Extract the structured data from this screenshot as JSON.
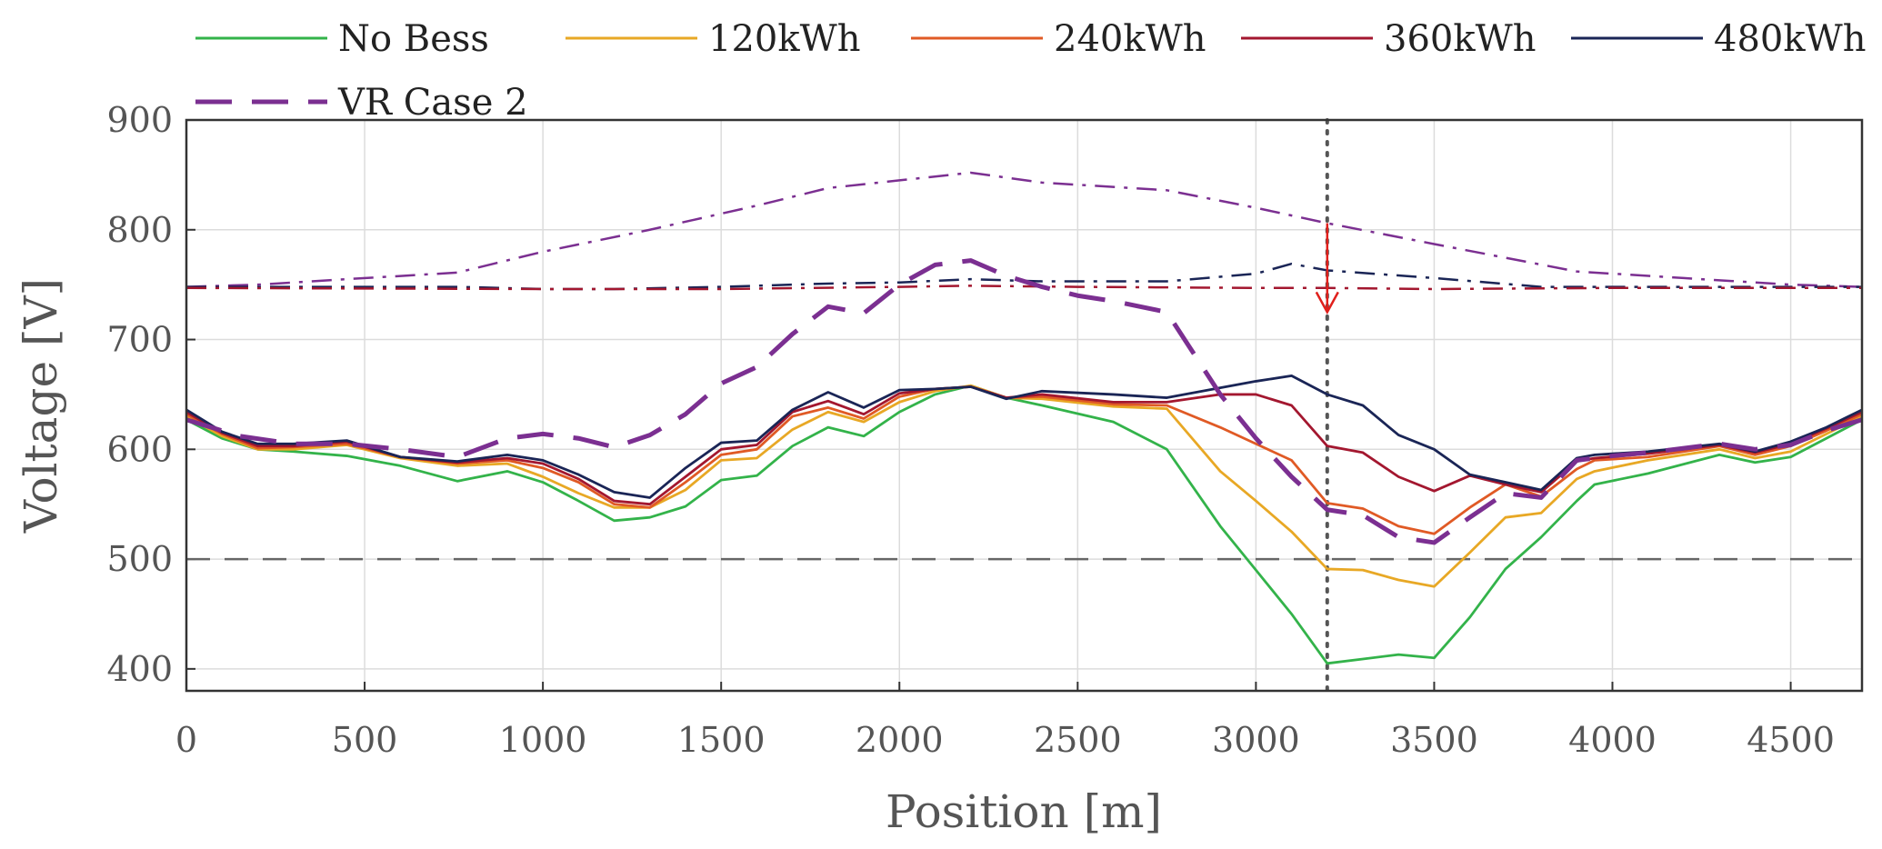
{
  "chart_data": {
    "type": "line",
    "title": "",
    "xlabel": "Position [m]",
    "ylabel": "Voltage [V]",
    "xlim": [
      0,
      4700
    ],
    "ylim": [
      380,
      900
    ],
    "xticks": [
      0,
      500,
      1000,
      1500,
      2000,
      2500,
      3000,
      3500,
      4000,
      4500
    ],
    "yticks": [
      400,
      500,
      600,
      700,
      800,
      900
    ],
    "grid": true,
    "legend_position": "top",
    "series": [
      {
        "name": "No Bess",
        "color": "#33b34a",
        "dash": "solid",
        "x": [
          0,
          100,
          200,
          300,
          450,
          600,
          760,
          900,
          1000,
          1100,
          1200,
          1300,
          1400,
          1500,
          1600,
          1700,
          1800,
          1900,
          2000,
          2100,
          2200,
          2300,
          2400,
          2600,
          2750,
          2900,
          3000,
          3100,
          3200,
          3300,
          3400,
          3500,
          3600,
          3700,
          3800,
          3900,
          3950,
          4100,
          4300,
          4400,
          4500,
          4600,
          4700
        ],
        "y": [
          627,
          610,
          600,
          598,
          594,
          585,
          571,
          580,
          570,
          553,
          535,
          538,
          548,
          572,
          576,
          603,
          620,
          612,
          634,
          650,
          658,
          647,
          640,
          625,
          600,
          530,
          490,
          450,
          405,
          409,
          413,
          410,
          447,
          491,
          520,
          553,
          568,
          578,
          595,
          588,
          593,
          610,
          627
        ]
      },
      {
        "name": "120kWh",
        "color": "#e8a825",
        "dash": "solid",
        "x": [
          0,
          100,
          200,
          300,
          450,
          600,
          760,
          900,
          1000,
          1100,
          1200,
          1300,
          1400,
          1500,
          1600,
          1700,
          1800,
          1900,
          2000,
          2100,
          2200,
          2300,
          2400,
          2600,
          2750,
          2900,
          3000,
          3100,
          3200,
          3300,
          3400,
          3500,
          3600,
          3700,
          3800,
          3900,
          3950,
          4100,
          4300,
          4400,
          4500,
          4600,
          4700
        ],
        "y": [
          630,
          612,
          600,
          600,
          604,
          592,
          585,
          587,
          575,
          560,
          547,
          547,
          563,
          590,
          592,
          618,
          634,
          625,
          643,
          653,
          658,
          647,
          646,
          639,
          637,
          580,
          553,
          525,
          491,
          490,
          481,
          475,
          506,
          538,
          542,
          573,
          580,
          590,
          600,
          592,
          598,
          614,
          630
        ]
      },
      {
        "name": "240kWh",
        "color": "#e05a25",
        "dash": "solid",
        "x": [
          0,
          100,
          200,
          300,
          450,
          600,
          760,
          900,
          1000,
          1100,
          1200,
          1300,
          1400,
          1500,
          1600,
          1700,
          1800,
          1900,
          2000,
          2100,
          2200,
          2300,
          2400,
          2600,
          2750,
          2900,
          3000,
          3100,
          3200,
          3300,
          3400,
          3500,
          3600,
          3700,
          3800,
          3900,
          3950,
          4100,
          4300,
          4400,
          4500,
          4600,
          4700
        ],
        "y": [
          632,
          614,
          601,
          602,
          605,
          593,
          587,
          590,
          583,
          570,
          550,
          547,
          570,
          595,
          600,
          630,
          638,
          628,
          648,
          655,
          657,
          647,
          648,
          641,
          640,
          620,
          605,
          590,
          551,
          546,
          530,
          523,
          547,
          568,
          557,
          582,
          590,
          593,
          603,
          595,
          603,
          617,
          632
        ]
      },
      {
        "name": "360kWh",
        "color": "#a3172f",
        "dash": "solid",
        "x": [
          0,
          100,
          200,
          300,
          450,
          600,
          760,
          900,
          1000,
          1100,
          1200,
          1300,
          1400,
          1500,
          1600,
          1700,
          1800,
          1900,
          2000,
          2100,
          2200,
          2300,
          2400,
          2600,
          2750,
          2900,
          3000,
          3100,
          3200,
          3300,
          3400,
          3500,
          3600,
          3700,
          3800,
          3900,
          3950,
          4100,
          4300,
          4400,
          4500,
          4600,
          4700
        ],
        "y": [
          634,
          615,
          603,
          603,
          607,
          593,
          588,
          592,
          587,
          573,
          553,
          550,
          575,
          600,
          604,
          634,
          644,
          632,
          651,
          655,
          657,
          647,
          650,
          643,
          643,
          650,
          650,
          640,
          603,
          597,
          575,
          562,
          576,
          568,
          561,
          589,
          592,
          596,
          604,
          597,
          605,
          619,
          634
        ]
      },
      {
        "name": "480kWh",
        "color": "#1a2556",
        "dash": "solid",
        "x": [
          0,
          100,
          200,
          300,
          450,
          600,
          760,
          900,
          1000,
          1100,
          1200,
          1300,
          1400,
          1500,
          1600,
          1700,
          1800,
          1900,
          2000,
          2100,
          2200,
          2300,
          2400,
          2600,
          2750,
          2900,
          3000,
          3100,
          3200,
          3300,
          3400,
          3500,
          3600,
          3700,
          3800,
          3900,
          3950,
          4100,
          4300,
          4400,
          4500,
          4600,
          4700
        ],
        "y": [
          636,
          616,
          605,
          605,
          608,
          593,
          589,
          595,
          590,
          577,
          561,
          556,
          583,
          606,
          608,
          636,
          652,
          638,
          654,
          655,
          657,
          646,
          653,
          650,
          647,
          656,
          662,
          667,
          650,
          640,
          613,
          600,
          577,
          570,
          563,
          592,
          595,
          598,
          605,
          598,
          607,
          620,
          636
        ]
      },
      {
        "name": "VR Case 2",
        "color": "#7b2f91",
        "dash": "dashed",
        "x": [
          0,
          150,
          300,
          450,
          600,
          760,
          900,
          1000,
          1100,
          1200,
          1300,
          1400,
          1500,
          1600,
          1700,
          1800,
          1900,
          2000,
          2100,
          2200,
          2300,
          2400,
          2500,
          2600,
          2750,
          2900,
          3000,
          3100,
          3200,
          3300,
          3400,
          3500,
          3600,
          3700,
          3800,
          3900,
          4000,
          4100,
          4300,
          4400,
          4500,
          4600,
          4700
        ],
        "y": [
          627,
          612,
          605,
          605,
          600,
          593,
          610,
          614,
          610,
          602,
          613,
          632,
          660,
          675,
          705,
          730,
          724,
          750,
          768,
          772,
          758,
          748,
          740,
          735,
          725,
          650,
          610,
          575,
          545,
          540,
          520,
          515,
          538,
          560,
          556,
          590,
          594,
          597,
          605,
          600,
          604,
          617,
          627
        ]
      }
    ],
    "reference_lines": [
      {
        "name": "Voltage limit 500 V",
        "y": 500,
        "color": "#666666",
        "dash": "dashed"
      },
      {
        "name": "Marker at 3200 m",
        "x": 3200,
        "color": "#555555",
        "dash": "dotted"
      }
    ],
    "auxiliary_lines": [
      {
        "name": "VR Case 2 dash-dot",
        "color": "#7b2f91",
        "x": [
          0,
          200,
          450,
          760,
          1000,
          1300,
          1600,
          1800,
          2000,
          2200,
          2400,
          2750,
          3000,
          3200,
          3500,
          3900,
          4200,
          4500,
          4700
        ],
        "y": [
          748,
          750,
          755,
          761,
          780,
          800,
          822,
          838,
          845,
          852,
          843,
          836,
          820,
          806,
          787,
          762,
          756,
          750,
          748
        ]
      },
      {
        "name": "480kWh dash-dot",
        "color": "#1a2556",
        "x": [
          0,
          450,
          760,
          1000,
          1200,
          1500,
          1800,
          2000,
          2200,
          2400,
          2750,
          3000,
          3100,
          3200,
          3500,
          3800,
          4000,
          4300,
          4700
        ],
        "y": [
          748,
          748,
          748,
          746,
          746,
          748,
          751,
          752,
          755,
          753,
          753,
          760,
          769,
          763,
          756,
          748,
          748,
          748,
          748
        ]
      },
      {
        "name": "360kWh dash-dot",
        "color": "#a3172f",
        "x": [
          0,
          1000,
          1500,
          2000,
          2200,
          2500,
          3000,
          3200,
          3500,
          4000,
          4700
        ],
        "y": [
          747,
          746,
          746,
          748,
          749,
          748,
          747,
          747,
          746,
          747,
          747
        ]
      }
    ],
    "annotations": [
      {
        "type": "arrow",
        "x": 3200,
        "y_from": 806,
        "y_to": 725,
        "color": "#e0201c"
      }
    ]
  }
}
